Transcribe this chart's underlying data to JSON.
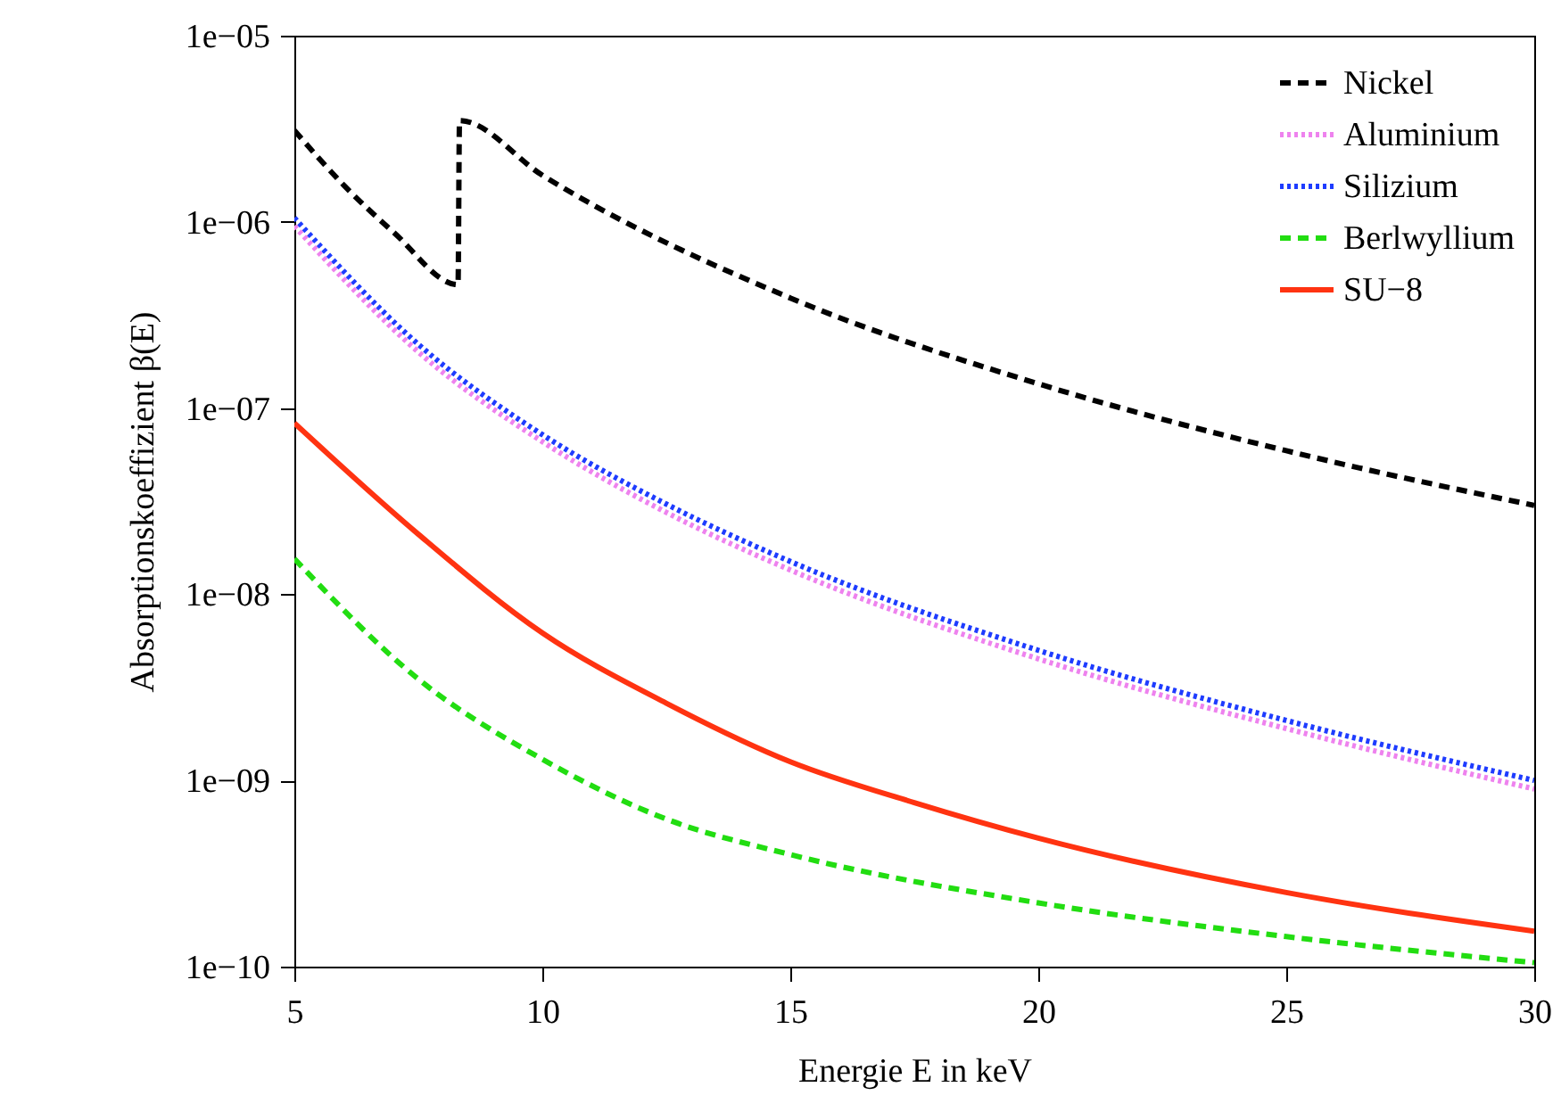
{
  "chart_data": {
    "type": "line",
    "xlabel": "Energie E in keV",
    "ylabel": "Absorptionskoeffizient β(E)",
    "log": "y",
    "grid": false,
    "legend": "top right",
    "xlim": [
      5,
      30
    ],
    "xticks": [
      5,
      10,
      15,
      20,
      25,
      30
    ],
    "ylim": [
      1e-10,
      1e-05
    ],
    "yticks": [
      {
        "value": 1e-10,
        "label": "1e−10"
      },
      {
        "value": 1e-09,
        "label": "1e−09"
      },
      {
        "value": 1e-08,
        "label": "1e−08"
      },
      {
        "value": 1e-07,
        "label": "1e−07"
      },
      {
        "value": 1e-06,
        "label": "1e−06"
      },
      {
        "value": 1e-05,
        "label": "1e−05"
      }
    ],
    "series": [
      {
        "name": "Nickel",
        "color": "#000000",
        "line_style": "dashed",
        "x": [
          5,
          6,
          7,
          8.3,
          8.33,
          10,
          15,
          20,
          25,
          30
        ],
        "values": [
          3.1e-06,
          1.57e-06,
          8.8e-07,
          4.6e-07,
          3.5e-06,
          1.78e-06,
          3.9e-07,
          1.35e-07,
          5.9e-08,
          3e-08
        ]
      },
      {
        "name": "Aluminium",
        "color": "#ee82ee",
        "line_style": "dotted",
        "x": [
          5,
          7.5,
          10,
          12.5,
          15,
          20,
          25,
          30
        ],
        "values": [
          9.5e-07,
          2e-07,
          6.6e-08,
          2.75e-08,
          1.35e-08,
          4.5e-09,
          1.9e-09,
          9e-10
        ]
      },
      {
        "name": "Silizium",
        "color": "#1e3cff",
        "line_style": "dotted",
        "x": [
          5,
          7.5,
          10,
          12.5,
          15,
          20,
          25,
          30
        ],
        "values": [
          1.05e-06,
          2.2e-07,
          7.2e-08,
          3.05e-08,
          1.5e-08,
          5e-09,
          2.1e-09,
          1e-09
        ]
      },
      {
        "name": "Berlwyllium",
        "color": "#22dd11",
        "line_style": "dashed",
        "x": [
          5,
          7.5,
          10,
          12.5,
          15,
          20,
          25,
          30
        ],
        "values": [
          1.55e-08,
          3.5e-09,
          1.3e-09,
          6.2e-10,
          4e-10,
          2.2e-10,
          1.45e-10,
          1.05e-10
        ]
      },
      {
        "name": "SU−8",
        "color": "#ff3311",
        "line_style": "solid",
        "x": [
          5,
          7.5,
          10,
          12.5,
          15,
          17.5,
          20,
          25,
          30
        ],
        "values": [
          8.3e-08,
          2.1e-08,
          6.2e-09,
          2.6e-09,
          1.26e-09,
          7.6e-10,
          4.9e-10,
          2.5e-10,
          1.55e-10
        ]
      }
    ]
  }
}
